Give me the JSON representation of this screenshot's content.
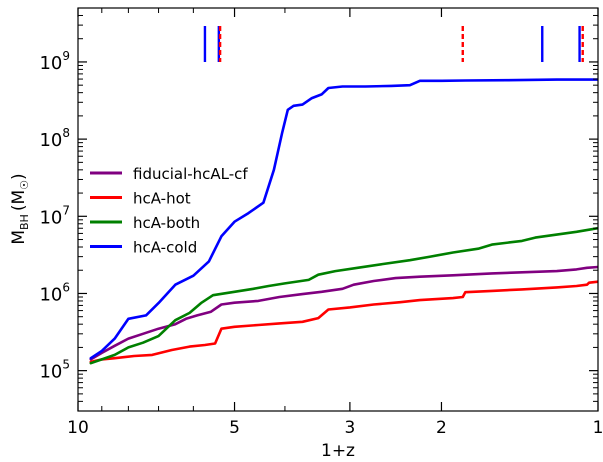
{
  "chart_data": {
    "type": "line",
    "xlabel": "1+z",
    "ylabel": "M_BH (M_☉)",
    "ylabel_main": "M",
    "ylabel_sub": "BH",
    "ylabel_unit": "(M",
    "ylabel_unit_sym": "☉",
    "ylabel_unit_close": ")",
    "x_scale": "log",
    "y_scale": "log",
    "x_reversed": true,
    "xlim": [
      10,
      1
    ],
    "ylim": [
      30000,
      5000000000
    ],
    "x_ticks": [
      {
        "value": 10,
        "label": "10"
      },
      {
        "value": 5,
        "label": "5"
      },
      {
        "value": 3,
        "label": "3"
      },
      {
        "value": 2,
        "label": "2"
      },
      {
        "value": 1,
        "label": "1"
      }
    ],
    "y_ticks": [
      {
        "value": 100000,
        "base": "10",
        "exp": "5"
      },
      {
        "value": 1000000,
        "base": "10",
        "exp": "6"
      },
      {
        "value": 10000000,
        "base": "10",
        "exp": "7"
      },
      {
        "value": 100000000,
        "base": "10",
        "exp": "8"
      },
      {
        "value": 1000000000,
        "base": "10",
        "exp": "9"
      }
    ],
    "grid": false,
    "legend_position": "center-left",
    "series": [
      {
        "name": "fiducial-hcAL-cf",
        "color": "#800080",
        "points": [
          [
            9.45,
            140000
          ],
          [
            9.0,
            170000
          ],
          [
            8.5,
            210000
          ],
          [
            8.0,
            260000
          ],
          [
            7.5,
            300000
          ],
          [
            7.0,
            350000
          ],
          [
            6.5,
            400000
          ],
          [
            6.2,
            470000
          ],
          [
            5.9,
            520000
          ],
          [
            5.55,
            580000
          ],
          [
            5.3,
            720000
          ],
          [
            5.0,
            760000
          ],
          [
            4.5,
            800000
          ],
          [
            4.1,
            900000
          ],
          [
            3.7,
            980000
          ],
          [
            3.4,
            1050000
          ],
          [
            3.1,
            1150000
          ],
          [
            2.95,
            1300000
          ],
          [
            2.7,
            1450000
          ],
          [
            2.45,
            1580000
          ],
          [
            2.2,
            1650000
          ],
          [
            1.9,
            1720000
          ],
          [
            1.6,
            1820000
          ],
          [
            1.4,
            1880000
          ],
          [
            1.2,
            1950000
          ],
          [
            1.1,
            2050000
          ],
          [
            1.05,
            2150000
          ],
          [
            1.0,
            2200000
          ]
        ]
      },
      {
        "name": "hcA-hot",
        "color": "#ff0000",
        "points": [
          [
            9.45,
            130000
          ],
          [
            9.0,
            140000
          ],
          [
            8.5,
            145000
          ],
          [
            7.8,
            155000
          ],
          [
            7.2,
            160000
          ],
          [
            6.6,
            185000
          ],
          [
            6.1,
            205000
          ],
          [
            5.7,
            215000
          ],
          [
            5.45,
            225000
          ],
          [
            5.3,
            350000
          ],
          [
            5.0,
            370000
          ],
          [
            4.5,
            390000
          ],
          [
            4.1,
            410000
          ],
          [
            3.7,
            430000
          ],
          [
            3.45,
            480000
          ],
          [
            3.3,
            620000
          ],
          [
            3.0,
            660000
          ],
          [
            2.7,
            720000
          ],
          [
            2.4,
            770000
          ],
          [
            2.2,
            820000
          ],
          [
            1.9,
            870000
          ],
          [
            1.82,
            900000
          ],
          [
            1.8,
            1040000
          ],
          [
            1.6,
            1080000
          ],
          [
            1.4,
            1130000
          ],
          [
            1.2,
            1200000
          ],
          [
            1.1,
            1250000
          ],
          [
            1.05,
            1300000
          ],
          [
            1.04,
            1380000
          ],
          [
            1.0,
            1420000
          ]
        ]
      },
      {
        "name": "hcA-both",
        "color": "#008000",
        "points": [
          [
            9.45,
            125000
          ],
          [
            9.0,
            140000
          ],
          [
            8.5,
            160000
          ],
          [
            8.0,
            200000
          ],
          [
            7.5,
            230000
          ],
          [
            7.0,
            280000
          ],
          [
            6.5,
            450000
          ],
          [
            6.1,
            560000
          ],
          [
            5.8,
            750000
          ],
          [
            5.5,
            950000
          ],
          [
            5.0,
            1050000
          ],
          [
            4.6,
            1150000
          ],
          [
            4.3,
            1250000
          ],
          [
            4.0,
            1350000
          ],
          [
            3.6,
            1500000
          ],
          [
            3.45,
            1750000
          ],
          [
            3.2,
            1950000
          ],
          [
            2.9,
            2150000
          ],
          [
            2.6,
            2400000
          ],
          [
            2.3,
            2700000
          ],
          [
            2.1,
            3000000
          ],
          [
            1.9,
            3400000
          ],
          [
            1.7,
            3800000
          ],
          [
            1.6,
            4300000
          ],
          [
            1.4,
            4800000
          ],
          [
            1.32,
            5300000
          ],
          [
            1.2,
            5800000
          ],
          [
            1.1,
            6300000
          ],
          [
            1.0,
            7000000
          ]
        ]
      },
      {
        "name": "hcA-cold",
        "color": "#0000ff",
        "points": [
          [
            9.45,
            145000
          ],
          [
            9.0,
            180000
          ],
          [
            8.5,
            260000
          ],
          [
            8.0,
            470000
          ],
          [
            7.4,
            520000
          ],
          [
            7.0,
            750000
          ],
          [
            6.5,
            1300000
          ],
          [
            6.0,
            1700000
          ],
          [
            5.6,
            2600000
          ],
          [
            5.3,
            5500000
          ],
          [
            5.0,
            8500000
          ],
          [
            4.7,
            11000000
          ],
          [
            4.4,
            15000000
          ],
          [
            4.2,
            40000000
          ],
          [
            4.05,
            120000000
          ],
          [
            3.95,
            240000000
          ],
          [
            3.85,
            270000000
          ],
          [
            3.7,
            280000000
          ],
          [
            3.55,
            340000000
          ],
          [
            3.4,
            380000000
          ],
          [
            3.3,
            460000000
          ],
          [
            3.1,
            480000000
          ],
          [
            2.8,
            480000000
          ],
          [
            2.5,
            490000000
          ],
          [
            2.3,
            500000000
          ],
          [
            2.2,
            570000000
          ],
          [
            2.0,
            570000000
          ],
          [
            1.8,
            575000000
          ],
          [
            1.5,
            580000000
          ],
          [
            1.2,
            590000000
          ],
          [
            1.0,
            590000000
          ]
        ]
      }
    ],
    "markers": [
      {
        "x": 5.7,
        "style": "solid",
        "color": "#0000ff"
      },
      {
        "x": 5.36,
        "style": "solid",
        "color": "#0000ff"
      },
      {
        "x": 5.33,
        "style": "dashed",
        "color": "#ff0000"
      },
      {
        "x": 1.82,
        "style": "dashed",
        "color": "#ff0000"
      },
      {
        "x": 1.28,
        "style": "solid",
        "color": "#0000ff"
      },
      {
        "x": 1.085,
        "style": "solid",
        "color": "#0000ff"
      },
      {
        "x": 1.07,
        "style": "dashed",
        "color": "#ff0000"
      }
    ]
  }
}
